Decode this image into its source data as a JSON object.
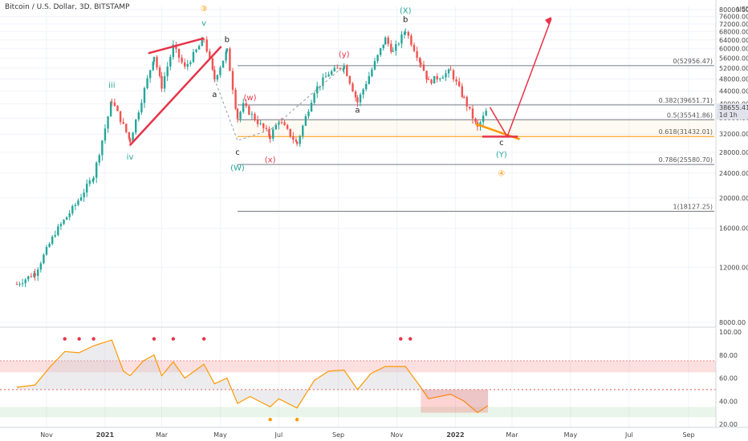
{
  "header": {
    "title": "Bitcoin / U.S. Dollar, 3D, BITSTAMP"
  },
  "colors": {
    "up": "#26a69a",
    "down": "#ef5350",
    "grid": "#f0f3fa",
    "fib": "#787b86",
    "fib_618": "#ff9800",
    "wave_red": "#e8334a",
    "wave_green": "#26a69a",
    "wave_orange": "#ff9800",
    "dark": "#222222",
    "rsi_line": "#ff9800"
  },
  "chart_data": {
    "type": "candlestick",
    "title": "Bitcoin / U.S. Dollar, 3D, BITSTAMP",
    "currency": "USD",
    "price_axis": {
      "scale": "log",
      "ticks": [
        "80000.00",
        "76000.00",
        "72000.00",
        "68000.00",
        "64000.00",
        "60000.00",
        "56000.00",
        "52000.00",
        "48000.00",
        "44000.00",
        "40000.00",
        "36000.00",
        "32000.00",
        "28000.00",
        "24000.00",
        "20000.00",
        "16000.00",
        "12000.00",
        "8000.00"
      ],
      "tick_values": [
        80000,
        76000,
        72000,
        68000,
        64000,
        60000,
        56000,
        52000,
        48000,
        44000,
        40000,
        36000,
        32000,
        28000,
        24000,
        20000,
        16000,
        12000,
        8000
      ]
    },
    "time_axis": {
      "labels": [
        "Nov",
        "2021",
        "Mar",
        "May",
        "Jul",
        "Sep",
        "Nov",
        "2022",
        "Mar",
        "May",
        "Jul",
        "Sep"
      ],
      "dates": [
        "2020-11-01",
        "2021-01-01",
        "2021-03-01",
        "2021-05-01",
        "2021-07-01",
        "2021-09-01",
        "2021-11-01",
        "2022-01-01",
        "2022-03-01",
        "2022-05-01",
        "2022-07-01",
        "2022-09-01"
      ]
    },
    "last_price": {
      "value": "38655.41",
      "interval": "1d 1h"
    },
    "ohlc_anchors": [
      {
        "date": "2020-10-01",
        "price": 10600
      },
      {
        "date": "2020-10-20",
        "price": 11500
      },
      {
        "date": "2020-11-10",
        "price": 15500
      },
      {
        "date": "2020-12-01",
        "price": 19000
      },
      {
        "date": "2020-12-20",
        "price": 23500
      },
      {
        "date": "2021-01-08",
        "price": 41000
      },
      {
        "date": "2021-01-27",
        "price": 30500
      },
      {
        "date": "2021-02-21",
        "price": 57000
      },
      {
        "date": "2021-03-01",
        "price": 45500
      },
      {
        "date": "2021-03-13",
        "price": 61000
      },
      {
        "date": "2021-03-25",
        "price": 52000
      },
      {
        "date": "2021-04-14",
        "price": 64500
      },
      {
        "date": "2021-04-25",
        "price": 48000
      },
      {
        "date": "2021-05-08",
        "price": 59000
      },
      {
        "date": "2021-05-19",
        "price": 36000
      },
      {
        "date": "2021-05-25",
        "price": 39500
      },
      {
        "date": "2021-06-22",
        "price": 31500
      },
      {
        "date": "2021-07-01",
        "price": 35500
      },
      {
        "date": "2021-07-20",
        "price": 29800
      },
      {
        "date": "2021-08-07",
        "price": 44000
      },
      {
        "date": "2021-08-22",
        "price": 50000
      },
      {
        "date": "2021-09-07",
        "price": 52900
      },
      {
        "date": "2021-09-21",
        "price": 40500
      },
      {
        "date": "2021-10-20",
        "price": 64500
      },
      {
        "date": "2021-10-28",
        "price": 58500
      },
      {
        "date": "2021-11-10",
        "price": 68800
      },
      {
        "date": "2021-11-26",
        "price": 54000
      },
      {
        "date": "2021-12-04",
        "price": 47000
      },
      {
        "date": "2021-12-27",
        "price": 50800
      },
      {
        "date": "2022-01-10",
        "price": 41500
      },
      {
        "date": "2022-01-24",
        "price": 33500
      },
      {
        "date": "2022-02-04",
        "price": 38655
      }
    ],
    "fib_levels": [
      {
        "ratio": "0",
        "price": 52956.47,
        "label": "0(52956.47)"
      },
      {
        "ratio": "0.382",
        "price": 39651.71,
        "label": "0.382(39651.71)"
      },
      {
        "ratio": "0.5",
        "price": 35541.86,
        "label": "0.5(35541.86)"
      },
      {
        "ratio": "0.618",
        "price": 31432.01,
        "label": "0.618(31432.01)"
      },
      {
        "ratio": "0.786",
        "price": 25580.7,
        "label": "0.786(25580.70)"
      },
      {
        "ratio": "1",
        "price": 18127.25,
        "label": "1(18127.25)"
      }
    ],
    "wave_labels": [
      {
        "text": "iii",
        "date": "2021-01-08",
        "price": 45000,
        "color": "wave_green"
      },
      {
        "text": "iv",
        "date": "2021-01-27",
        "price": 26500,
        "color": "wave_green"
      },
      {
        "text": "v",
        "date": "2021-04-14",
        "price": 71000,
        "color": "wave_green"
      },
      {
        "text": "③",
        "date": "2021-04-14",
        "price": 79000,
        "color": "wave_orange"
      },
      {
        "text": "b",
        "date": "2021-05-08",
        "price": 63000,
        "color": "dark"
      },
      {
        "text": "a",
        "date": "2021-04-25",
        "price": 42000,
        "color": "dark"
      },
      {
        "text": "c",
        "date": "2021-05-19",
        "price": 27500,
        "color": "dark"
      },
      {
        "text": "(W)",
        "date": "2021-05-19",
        "price": 24500,
        "color": "wave_green"
      },
      {
        "text": "(w)",
        "date": "2021-06-01",
        "price": 41000,
        "color": "wave_red"
      },
      {
        "text": "(x)",
        "date": "2021-06-22",
        "price": 26000,
        "color": "wave_red"
      },
      {
        "text": "(y)",
        "date": "2021-09-07",
        "price": 56500,
        "color": "wave_red"
      },
      {
        "text": "a",
        "date": "2021-09-21",
        "price": 37500,
        "color": "dark"
      },
      {
        "text": "(X)",
        "date": "2021-11-10",
        "price": 78000,
        "color": "wave_green"
      },
      {
        "text": "b",
        "date": "2021-11-10",
        "price": 73000,
        "color": "dark"
      },
      {
        "text": "c",
        "date": "2022-02-18",
        "price": 29500,
        "color": "dark"
      },
      {
        "text": "(Y)",
        "date": "2022-02-18",
        "price": 27000,
        "color": "wave_green"
      },
      {
        "text": "④",
        "date": "2022-02-18",
        "price": 23500,
        "color": "wave_orange"
      }
    ],
    "rsi": {
      "ticks": [
        "100.00",
        "80.00",
        "60.00",
        "40.00",
        "20.00"
      ],
      "tick_values": [
        100,
        80,
        60,
        40,
        20
      ],
      "overbought": 65,
      "oversold": 30,
      "midline": 50,
      "points": [
        {
          "date": "2020-10-01",
          "v": 52
        },
        {
          "date": "2020-10-20",
          "v": 54
        },
        {
          "date": "2020-11-05",
          "v": 70
        },
        {
          "date": "2020-11-20",
          "v": 83
        },
        {
          "date": "2020-12-05",
          "v": 82
        },
        {
          "date": "2020-12-20",
          "v": 88
        },
        {
          "date": "2021-01-08",
          "v": 93
        },
        {
          "date": "2021-01-20",
          "v": 66
        },
        {
          "date": "2021-01-27",
          "v": 62
        },
        {
          "date": "2021-02-10",
          "v": 75
        },
        {
          "date": "2021-02-21",
          "v": 80
        },
        {
          "date": "2021-03-01",
          "v": 62
        },
        {
          "date": "2021-03-13",
          "v": 74
        },
        {
          "date": "2021-03-25",
          "v": 60
        },
        {
          "date": "2021-04-14",
          "v": 72
        },
        {
          "date": "2021-04-25",
          "v": 55
        },
        {
          "date": "2021-05-08",
          "v": 60
        },
        {
          "date": "2021-05-19",
          "v": 38
        },
        {
          "date": "2021-06-01",
          "v": 44
        },
        {
          "date": "2021-06-22",
          "v": 35
        },
        {
          "date": "2021-07-01",
          "v": 42
        },
        {
          "date": "2021-07-20",
          "v": 34
        },
        {
          "date": "2021-08-07",
          "v": 58
        },
        {
          "date": "2021-08-22",
          "v": 66
        },
        {
          "date": "2021-09-07",
          "v": 67
        },
        {
          "date": "2021-09-21",
          "v": 50
        },
        {
          "date": "2021-10-05",
          "v": 64
        },
        {
          "date": "2021-10-20",
          "v": 70
        },
        {
          "date": "2021-11-10",
          "v": 70
        },
        {
          "date": "2021-11-26",
          "v": 52
        },
        {
          "date": "2021-12-04",
          "v": 42
        },
        {
          "date": "2021-12-27",
          "v": 46
        },
        {
          "date": "2022-01-10",
          "v": 40
        },
        {
          "date": "2022-01-24",
          "v": 30
        },
        {
          "date": "2022-02-04",
          "v": 36
        }
      ],
      "red_markers": [
        "2020-11-20",
        "2020-12-05",
        "2020-12-20",
        "2021-02-21",
        "2021-03-13",
        "2021-04-14",
        "2021-11-05",
        "2021-11-15"
      ],
      "orange_markers": [
        "2021-06-22",
        "2021-07-20"
      ]
    }
  }
}
